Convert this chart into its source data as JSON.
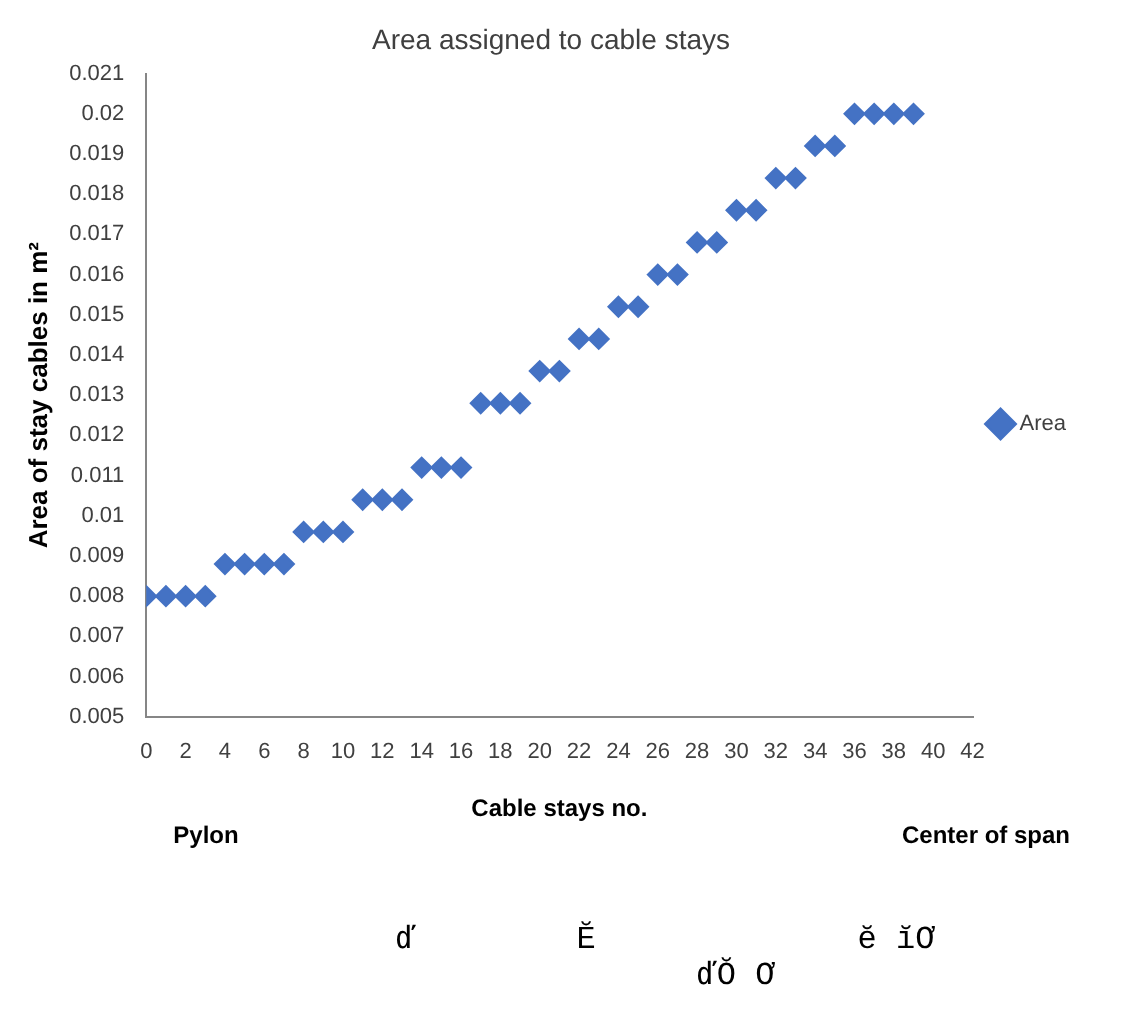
{
  "chart_data": {
    "type": "scatter",
    "title": "Area assigned to cable stays",
    "xlabel": "Cable stays no.",
    "ylabel": "Area of stay cables in m²",
    "annotations": [
      "Pylon",
      "Center of span",
      "ď",
      "Ĕ",
      "ĕ ĭƠ",
      "ďŎ Ơ"
    ],
    "x": [
      0,
      1,
      2,
      3,
      4,
      5,
      6,
      7,
      8,
      9,
      10,
      11,
      12,
      13,
      14,
      15,
      16,
      17,
      18,
      19,
      20,
      21,
      22,
      23,
      24,
      25,
      26,
      27,
      28,
      29,
      30,
      31,
      32,
      33,
      34,
      35,
      36,
      37,
      38,
      39
    ],
    "series": [
      {
        "name": "Area",
        "color": "#4472c4",
        "values": [
          0.008,
          0.008,
          0.008,
          0.008,
          0.0088,
          0.0088,
          0.0088,
          0.0088,
          0.0096,
          0.0096,
          0.0096,
          0.0104,
          0.0104,
          0.0104,
          0.0112,
          0.0112,
          0.0112,
          0.0128,
          0.0128,
          0.0128,
          0.0136,
          0.0136,
          0.0144,
          0.0144,
          0.0152,
          0.0152,
          0.016,
          0.016,
          0.0168,
          0.0168,
          0.0176,
          0.0176,
          0.0184,
          0.0184,
          0.0192,
          0.0192,
          0.02,
          0.02,
          0.02,
          0.02
        ]
      }
    ],
    "xlim": [
      0,
      42
    ],
    "xticks": [
      0,
      2,
      4,
      6,
      8,
      10,
      12,
      14,
      16,
      18,
      20,
      22,
      24,
      26,
      28,
      30,
      32,
      34,
      36,
      38,
      40,
      42
    ],
    "ylim": [
      0.005,
      0.021
    ],
    "yticks": [
      0.005,
      0.006,
      0.007,
      0.008,
      0.009,
      0.01,
      0.011,
      0.012,
      0.013,
      0.014,
      0.015,
      0.016,
      0.017,
      0.018,
      0.019,
      0.02,
      0.021
    ],
    "grid": false,
    "legend": "right",
    "marker": "diamond"
  }
}
